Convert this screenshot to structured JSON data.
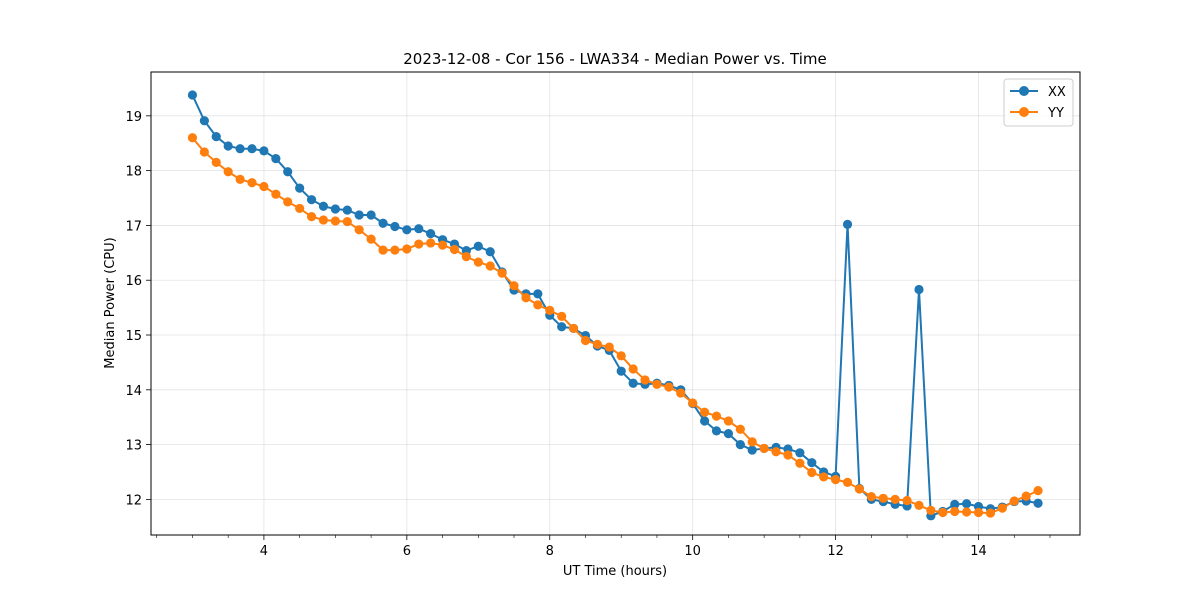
{
  "chart_data": {
    "type": "line",
    "title": "2023-12-08 - Cor 156 - LWA334 - Median Power vs. Time",
    "xlabel": "UT Time (hours)",
    "ylabel": "Median Power (CPU)",
    "xlim": [
      2.42,
      15.42
    ],
    "ylim": [
      11.35,
      19.8
    ],
    "xticks": [
      4,
      6,
      8,
      10,
      12,
      14
    ],
    "yticks": [
      12,
      13,
      14,
      15,
      16,
      17,
      18,
      19
    ],
    "grid": true,
    "legend_position": "top-right",
    "x": [
      3.0,
      3.167,
      3.333,
      3.5,
      3.667,
      3.833,
      4.0,
      4.167,
      4.333,
      4.5,
      4.667,
      4.833,
      5.0,
      5.167,
      5.333,
      5.5,
      5.667,
      5.833,
      6.0,
      6.167,
      6.333,
      6.5,
      6.667,
      6.833,
      7.0,
      7.167,
      7.333,
      7.5,
      7.667,
      7.833,
      8.0,
      8.167,
      8.333,
      8.5,
      8.667,
      8.833,
      9.0,
      9.167,
      9.333,
      9.5,
      9.667,
      9.833,
      10.0,
      10.167,
      10.333,
      10.5,
      10.667,
      10.833,
      11.0,
      11.167,
      11.333,
      11.5,
      11.667,
      11.833,
      12.0,
      12.167,
      12.333,
      12.5,
      12.667,
      12.833,
      13.0,
      13.167,
      13.333,
      13.5,
      13.667,
      13.833,
      14.0,
      14.167,
      14.333,
      14.5,
      14.667,
      14.833
    ],
    "series": [
      {
        "name": "XX",
        "color": "#1f77b4",
        "values": [
          19.38,
          18.91,
          18.62,
          18.45,
          18.4,
          18.4,
          18.36,
          18.22,
          17.98,
          17.68,
          17.47,
          17.35,
          17.3,
          17.28,
          17.19,
          17.19,
          17.04,
          16.98,
          16.92,
          16.94,
          16.85,
          16.74,
          16.66,
          16.54,
          16.62,
          16.52,
          16.15,
          15.82,
          15.75,
          15.75,
          15.36,
          15.15,
          15.12,
          14.99,
          14.8,
          14.72,
          14.34,
          14.12,
          14.1,
          14.12,
          14.08,
          14.0,
          13.75,
          13.43,
          13.25,
          13.2,
          13.0,
          12.9,
          12.93,
          12.95,
          12.92,
          12.85,
          12.67,
          12.5,
          12.42,
          17.02,
          12.2,
          12.0,
          11.96,
          11.91,
          11.88,
          15.83,
          11.7,
          11.78,
          11.91,
          11.92,
          11.87,
          11.83,
          11.86,
          11.96,
          11.97,
          11.93
        ]
      },
      {
        "name": "YY",
        "color": "#ff7f0e",
        "values": [
          18.6,
          18.34,
          18.15,
          17.98,
          17.84,
          17.78,
          17.71,
          17.57,
          17.43,
          17.31,
          17.16,
          17.1,
          17.08,
          17.07,
          16.92,
          16.75,
          16.55,
          16.55,
          16.57,
          16.66,
          16.68,
          16.64,
          16.56,
          16.43,
          16.33,
          16.26,
          16.13,
          15.9,
          15.68,
          15.55,
          15.45,
          15.34,
          15.12,
          14.9,
          14.83,
          14.78,
          14.62,
          14.38,
          14.18,
          14.1,
          14.05,
          13.94,
          13.76,
          13.59,
          13.52,
          13.43,
          13.28,
          13.05,
          12.93,
          12.87,
          12.81,
          12.66,
          12.49,
          12.41,
          12.36,
          12.31,
          12.19,
          12.05,
          12.02,
          12.0,
          11.98,
          11.89,
          11.8,
          11.76,
          11.78,
          11.77,
          11.76,
          11.75,
          11.84,
          11.97,
          12.06,
          12.16
        ]
      }
    ]
  }
}
